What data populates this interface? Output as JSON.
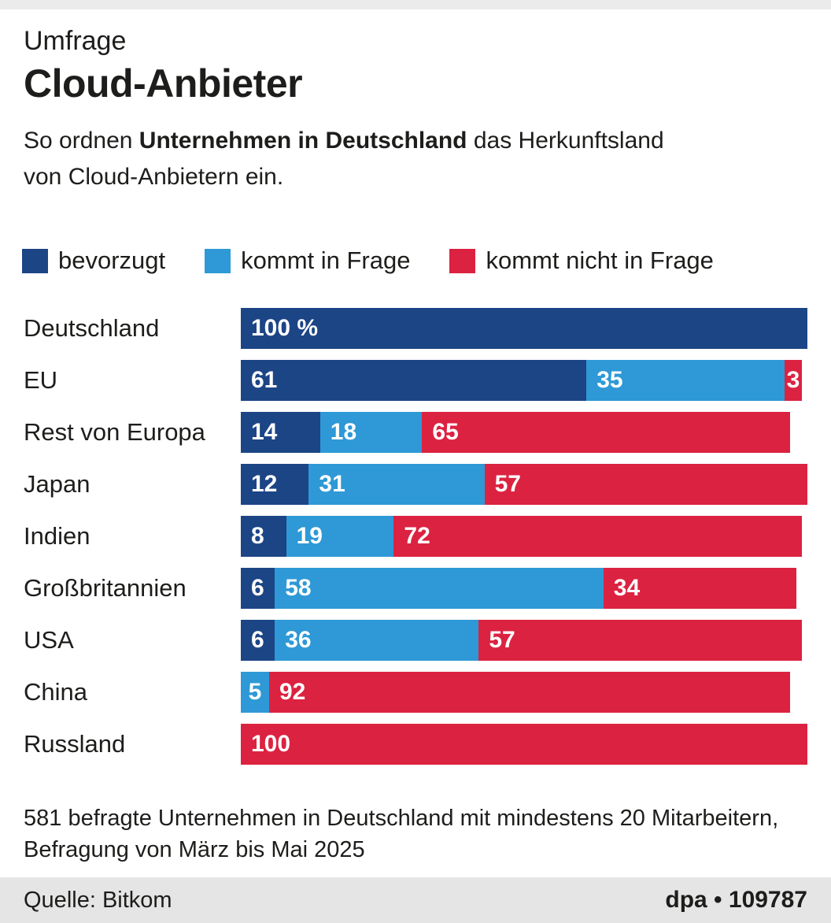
{
  "header": {
    "kicker": "Umfrage",
    "title": "Cloud-Anbieter",
    "description": {
      "line1_prefix": "So ordnen ",
      "line1_bold": "Unternehmen in Deutschland",
      "line1_suffix": " das Herkunftsland",
      "line2": "von Cloud-Anbietern ein."
    }
  },
  "colors": {
    "dark_blue": "#1c4586",
    "light_blue": "#2e99d6",
    "red": "#dc2241",
    "text": "#1d1d1b",
    "top_strip_gray": "#ebebeb",
    "footer_gray": "#e5e5e5"
  },
  "legend": {
    "items": [
      {
        "label": "bevorzugt",
        "colorKey": "dark_blue"
      },
      {
        "label": "kommt in Frage",
        "colorKey": "light_blue"
      },
      {
        "label": "kommt nicht in Frage",
        "colorKey": "red"
      }
    ]
  },
  "chart_data": {
    "type": "bar",
    "orientation": "horizontal",
    "stacked": true,
    "unit": "%",
    "xlim": [
      0,
      100
    ],
    "first_bar_label": "100 %",
    "categories": [
      "Deutschland",
      "EU",
      "Rest von Europa",
      "Japan",
      "Indien",
      "Großbritannien",
      "USA",
      "China",
      "Russland"
    ],
    "series": [
      {
        "name": "bevorzugt",
        "colorKey": "dark_blue",
        "values": [
          100,
          61,
          14,
          12,
          8,
          6,
          6,
          0,
          0
        ]
      },
      {
        "name": "kommt in Frage",
        "colorKey": "light_blue",
        "values": [
          0,
          35,
          18,
          31,
          19,
          58,
          36,
          5,
          0
        ]
      },
      {
        "name": "kommt nicht in Frage",
        "colorKey": "red",
        "values": [
          0,
          3,
          65,
          57,
          72,
          34,
          57,
          92,
          100
        ]
      }
    ]
  },
  "footnote": {
    "line1": "581 befragte Unternehmen in Deutschland mit mindestens 20 Mitarbeitern,",
    "line2": "Befragung von März bis Mai 2025"
  },
  "footer": {
    "source": "Quelle: Bitkom",
    "credit": "dpa • 109787"
  }
}
